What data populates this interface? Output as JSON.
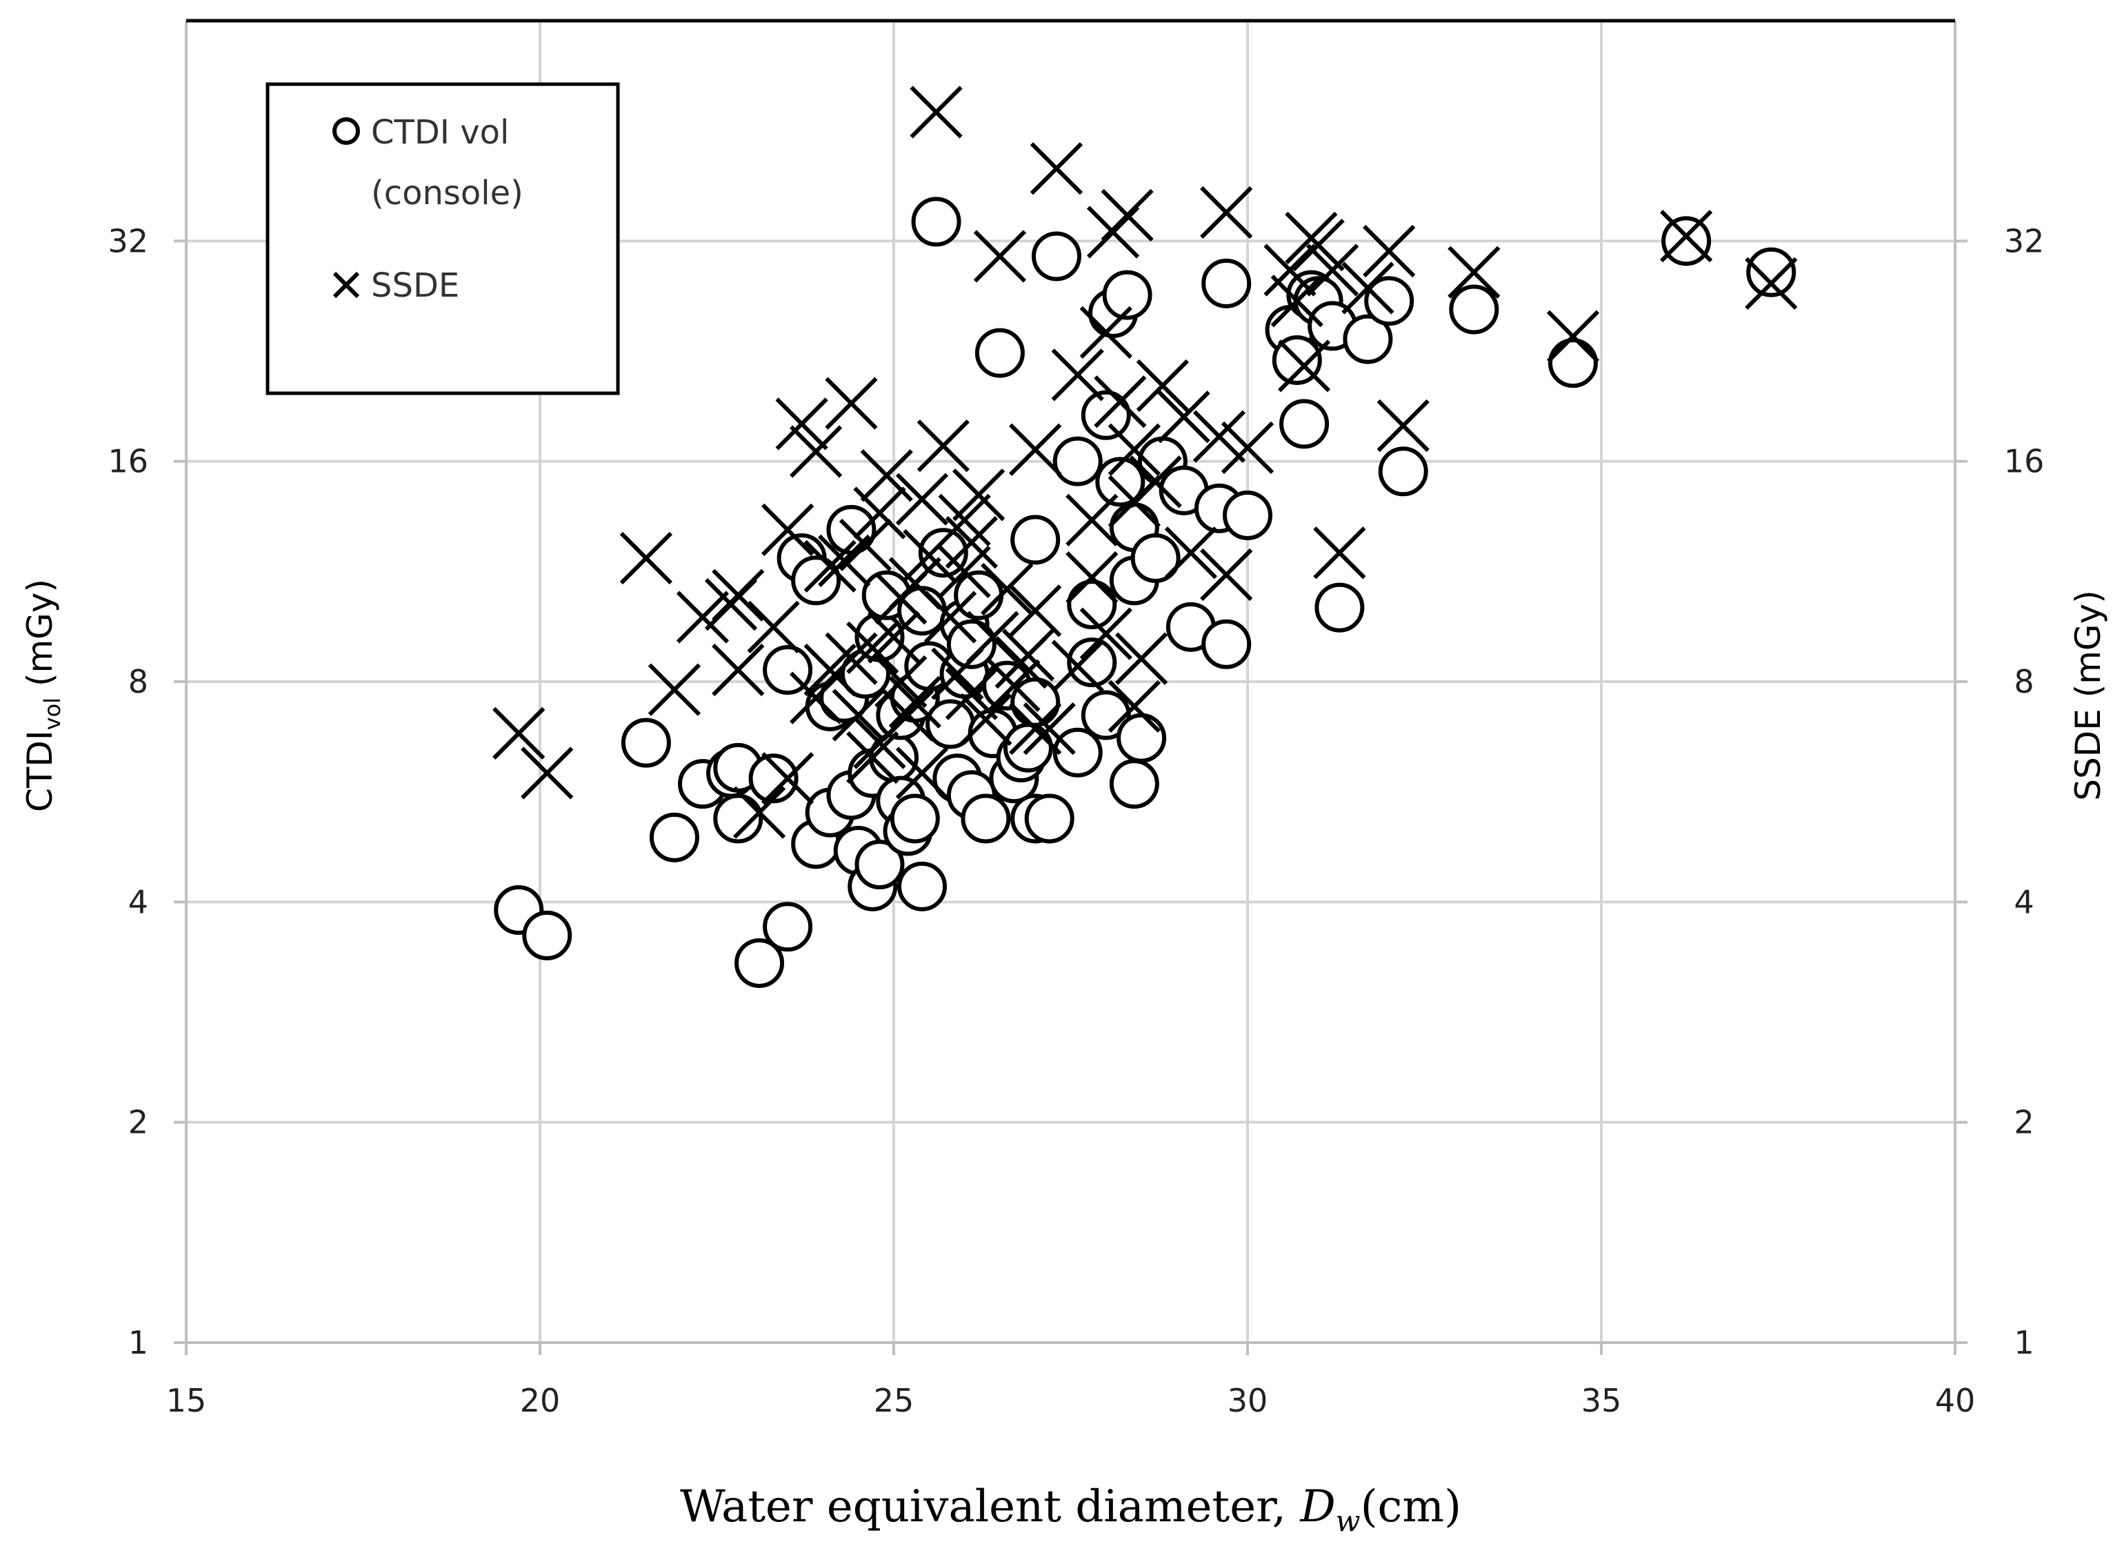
{
  "chart_data": {
    "type": "scatter",
    "title": "",
    "xlabel": "Water equivalent diameter, D_w(cm)",
    "xlabel_parts": {
      "prefix": "Water equivalent diameter, ",
      "italic": "D",
      "italic_sub": "w",
      "suffix": "(cm)"
    },
    "ylabel_left": "CTDI_vol (mGy)",
    "ylabel_left_parts": {
      "main": "CTDI",
      "sub": "vol",
      "rest": " (mGy)"
    },
    "ylabel_right": "SSDE (mGy)",
    "xlim": [
      15,
      40
    ],
    "ylim": [
      1,
      64
    ],
    "y_scale": "log2",
    "x_ticks": [
      "15",
      "20",
      "25",
      "30",
      "35",
      "40"
    ],
    "x_tick_values": [
      15,
      20,
      25,
      30,
      35,
      40
    ],
    "y_ticks": [
      "1",
      "2",
      "4",
      "8",
      "16",
      "32"
    ],
    "y_tick_values": [
      1,
      2,
      4,
      8,
      16,
      32
    ],
    "grid": true,
    "legend_position": "top-left",
    "legend": [
      {
        "marker": "circle",
        "label_lines": [
          "CTDI vol",
          "(console)"
        ]
      },
      {
        "marker": "cross",
        "label_lines": [
          "SSDE"
        ]
      }
    ],
    "series": [
      {
        "name": "CTDI vol (console)",
        "marker": "circle",
        "points": [
          [
            19.7,
            3.9
          ],
          [
            20.1,
            3.6
          ],
          [
            21.5,
            6.6
          ],
          [
            21.9,
            4.9
          ],
          [
            22.3,
            5.8
          ],
          [
            22.7,
            6.0
          ],
          [
            22.8,
            6.1
          ],
          [
            22.8,
            5.2
          ],
          [
            23.1,
            3.3
          ],
          [
            23.3,
            5.9
          ],
          [
            23.5,
            3.7
          ],
          [
            23.5,
            8.3
          ],
          [
            23.7,
            11.8
          ],
          [
            23.9,
            4.8
          ],
          [
            23.9,
            11.0
          ],
          [
            24.1,
            7.4
          ],
          [
            24.1,
            5.3
          ],
          [
            24.3,
            7.6
          ],
          [
            24.4,
            12.9
          ],
          [
            24.4,
            5.6
          ],
          [
            24.5,
            4.7
          ],
          [
            24.6,
            8.2
          ],
          [
            24.7,
            4.2
          ],
          [
            24.7,
            6.0
          ],
          [
            24.8,
            9.2
          ],
          [
            24.8,
            4.5
          ],
          [
            24.9,
            10.5
          ],
          [
            25.0,
            6.3
          ],
          [
            25.1,
            5.5
          ],
          [
            25.1,
            7.2
          ],
          [
            25.2,
            5.0
          ],
          [
            25.3,
            5.2
          ],
          [
            25.3,
            7.6
          ],
          [
            25.4,
            4.2
          ],
          [
            25.4,
            10.0
          ],
          [
            25.5,
            8.4
          ],
          [
            25.6,
            34.0
          ],
          [
            25.7,
            12.0
          ],
          [
            25.8,
            7.0
          ],
          [
            25.9,
            5.9
          ],
          [
            26.0,
            9.6
          ],
          [
            26.0,
            8.2
          ],
          [
            26.1,
            5.6
          ],
          [
            26.1,
            9.0
          ],
          [
            26.2,
            10.5
          ],
          [
            26.3,
            5.2
          ],
          [
            26.4,
            6.8
          ],
          [
            26.5,
            22.5
          ],
          [
            26.6,
            7.9
          ],
          [
            26.7,
            5.9
          ],
          [
            26.8,
            6.3
          ],
          [
            26.9,
            6.5
          ],
          [
            27.0,
            7.5
          ],
          [
            27.0,
            12.5
          ],
          [
            27.0,
            5.2
          ],
          [
            27.2,
            5.2
          ],
          [
            27.3,
            30.5
          ],
          [
            27.6,
            16.0
          ],
          [
            27.6,
            6.4
          ],
          [
            27.8,
            10.2
          ],
          [
            27.8,
            8.5
          ],
          [
            28.0,
            18.5
          ],
          [
            28.0,
            7.2
          ],
          [
            28.1,
            25.5
          ],
          [
            28.2,
            15.0
          ],
          [
            28.3,
            27.0
          ],
          [
            28.4,
            13.0
          ],
          [
            28.4,
            11.0
          ],
          [
            28.4,
            5.8
          ],
          [
            28.5,
            6.7
          ],
          [
            28.7,
            11.8
          ],
          [
            28.8,
            16.0
          ],
          [
            29.1,
            14.6
          ],
          [
            29.2,
            9.5
          ],
          [
            29.6,
            13.8
          ],
          [
            29.7,
            28.0
          ],
          [
            29.7,
            9.0
          ],
          [
            30.0,
            13.5
          ],
          [
            30.6,
            24.2
          ],
          [
            30.7,
            22.0
          ],
          [
            30.8,
            18.0
          ],
          [
            30.9,
            27.0
          ],
          [
            31.0,
            26.5
          ],
          [
            31.2,
            24.5
          ],
          [
            31.3,
            10.1
          ],
          [
            31.7,
            23.5
          ],
          [
            32.0,
            26.5
          ],
          [
            32.2,
            15.5
          ],
          [
            33.2,
            25.8
          ],
          [
            34.6,
            21.8
          ],
          [
            36.2,
            32.0
          ],
          [
            37.4,
            29.0
          ]
        ]
      },
      {
        "name": "SSDE",
        "marker": "cross",
        "points": [
          [
            19.7,
            6.8
          ],
          [
            20.1,
            6.0
          ],
          [
            21.5,
            11.8
          ],
          [
            21.9,
            7.8
          ],
          [
            22.3,
            9.8
          ],
          [
            22.7,
            10.2
          ],
          [
            22.8,
            10.5
          ],
          [
            22.8,
            8.3
          ],
          [
            23.1,
            5.3
          ],
          [
            23.3,
            9.5
          ],
          [
            23.5,
            5.9
          ],
          [
            23.5,
            12.9
          ],
          [
            23.7,
            18.0
          ],
          [
            23.9,
            7.6
          ],
          [
            23.9,
            16.5
          ],
          [
            24.1,
            11.5
          ],
          [
            24.1,
            8.3
          ],
          [
            24.3,
            11.7
          ],
          [
            24.4,
            19.2
          ],
          [
            24.4,
            8.6
          ],
          [
            24.5,
            7.2
          ],
          [
            24.6,
            12.3
          ],
          [
            24.7,
            6.3
          ],
          [
            24.7,
            8.9
          ],
          [
            24.8,
            13.6
          ],
          [
            24.8,
            6.6
          ],
          [
            24.9,
            15.3
          ],
          [
            25.0,
            9.2
          ],
          [
            25.1,
            8.0
          ],
          [
            25.1,
            10.4
          ],
          [
            25.2,
            7.2
          ],
          [
            25.3,
            7.5
          ],
          [
            25.3,
            10.9
          ],
          [
            25.4,
            6.0
          ],
          [
            25.4,
            14.2
          ],
          [
            25.5,
            11.9
          ],
          [
            25.6,
            48.0
          ],
          [
            25.7,
            16.8
          ],
          [
            25.8,
            9.8
          ],
          [
            25.9,
            8.2
          ],
          [
            26.0,
            13.3
          ],
          [
            26.0,
            11.3
          ],
          [
            26.1,
            7.7
          ],
          [
            26.1,
            12.4
          ],
          [
            26.2,
            14.4
          ],
          [
            26.3,
            7.1
          ],
          [
            26.4,
            9.2
          ],
          [
            26.5,
            30.5
          ],
          [
            26.6,
            10.7
          ],
          [
            26.7,
            7.9
          ],
          [
            26.8,
            8.5
          ],
          [
            26.9,
            8.7
          ],
          [
            27.0,
            10.0
          ],
          [
            27.0,
            16.6
          ],
          [
            27.0,
            6.9
          ],
          [
            27.2,
            6.9
          ],
          [
            27.3,
            40.2
          ],
          [
            27.6,
            21.0
          ],
          [
            27.6,
            8.4
          ],
          [
            27.8,
            13.3
          ],
          [
            27.8,
            11.1
          ],
          [
            28.0,
            24.0
          ],
          [
            28.0,
            9.3
          ],
          [
            28.1,
            32.9
          ],
          [
            28.2,
            19.3
          ],
          [
            28.3,
            34.7
          ],
          [
            28.4,
            16.6
          ],
          [
            28.4,
            14.1
          ],
          [
            28.4,
            7.4
          ],
          [
            28.5,
            8.6
          ],
          [
            28.7,
            15.0
          ],
          [
            28.8,
            20.3
          ],
          [
            29.1,
            18.4
          ],
          [
            29.2,
            12.0
          ],
          [
            29.6,
            17.3
          ],
          [
            29.7,
            35.0
          ],
          [
            29.7,
            11.2
          ],
          [
            30.0,
            16.7
          ],
          [
            30.6,
            29.2
          ],
          [
            30.7,
            26.5
          ],
          [
            30.8,
            21.6
          ],
          [
            30.9,
            32.3
          ],
          [
            31.0,
            31.6
          ],
          [
            31.2,
            29.2
          ],
          [
            31.3,
            12.0
          ],
          [
            31.7,
            27.6
          ],
          [
            32.0,
            31.0
          ],
          [
            32.2,
            17.9
          ],
          [
            33.2,
            29.0
          ],
          [
            34.6,
            23.7
          ],
          [
            36.2,
            32.5
          ],
          [
            37.4,
            28.0
          ]
        ]
      }
    ]
  }
}
